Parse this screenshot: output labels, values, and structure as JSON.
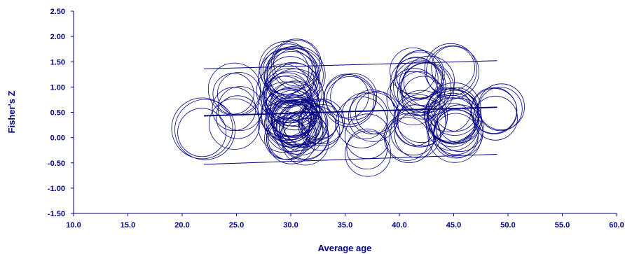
{
  "chart_data": {
    "type": "scatter",
    "title": "",
    "xlabel": "Average age",
    "ylabel": "Fisher's Z",
    "xlim": [
      10.0,
      60.0
    ],
    "ylim": [
      -1.5,
      2.5
    ],
    "x_ticks": [
      "10.0",
      "15.0",
      "20.0",
      "25.0",
      "30.0",
      "35.0",
      "40.0",
      "45.0",
      "50.0",
      "55.0",
      "60.0"
    ],
    "y_ticks": [
      "-1.50",
      "-1.00",
      "-0.50",
      "0.00",
      "0.50",
      "1.00",
      "1.50",
      "2.00",
      "2.50"
    ],
    "grid": false,
    "colors": {
      "series": "#000080",
      "axis": "#000080"
    },
    "marker": "circle-weighted",
    "regression_lines": {
      "center": {
        "x": [
          22.0,
          49.0
        ],
        "y": [
          0.43,
          0.6
        ]
      },
      "upper": {
        "x": [
          22.0,
          49.0
        ],
        "y": [
          1.36,
          1.52
        ]
      },
      "lower": {
        "x": [
          22.0,
          49.0
        ],
        "y": [
          -0.53,
          -0.33
        ]
      }
    },
    "clusters": [
      {
        "x": 22.0,
        "y": 0.15,
        "n": 3,
        "spread_x": 0.2,
        "spread_y": 0.05,
        "r": 40
      },
      {
        "x": 25.0,
        "y": 0.9,
        "n": 3,
        "spread_x": 0.4,
        "spread_y": 0.1,
        "r": 34
      },
      {
        "x": 25.0,
        "y": 0.4,
        "n": 4,
        "spread_x": 0.4,
        "spread_y": 0.2,
        "r": 34
      },
      {
        "x": 30.0,
        "y": 1.3,
        "n": 12,
        "spread_x": 0.6,
        "spread_y": 0.2,
        "r": 38
      },
      {
        "x": 30.0,
        "y": 0.6,
        "n": 22,
        "spread_x": 0.7,
        "spread_y": 0.4,
        "r": 38
      },
      {
        "x": 30.5,
        "y": 0.2,
        "n": 20,
        "spread_x": 1.0,
        "spread_y": 0.3,
        "r": 32
      },
      {
        "x": 32.5,
        "y": 0.2,
        "n": 6,
        "spread_x": 0.5,
        "spread_y": 0.2,
        "r": 30
      },
      {
        "x": 35.0,
        "y": 1.0,
        "n": 4,
        "spread_x": 1.0,
        "spread_y": 0.3,
        "r": 34
      },
      {
        "x": 37.5,
        "y": 0.3,
        "n": 6,
        "spread_x": 1.0,
        "spread_y": 0.3,
        "r": 34
      },
      {
        "x": 37.5,
        "y": -0.3,
        "n": 2,
        "spread_x": 0.6,
        "spread_y": 0.1,
        "r": 32
      },
      {
        "x": 42.0,
        "y": 1.05,
        "n": 14,
        "spread_x": 0.8,
        "spread_y": 0.3,
        "r": 36
      },
      {
        "x": 41.5,
        "y": 0.2,
        "n": 8,
        "spread_x": 1.0,
        "spread_y": 0.25,
        "r": 34
      },
      {
        "x": 45.0,
        "y": 1.3,
        "n": 3,
        "spread_x": 0.3,
        "spread_y": 0.1,
        "r": 36
      },
      {
        "x": 45.0,
        "y": 0.3,
        "n": 16,
        "spread_x": 0.6,
        "spread_y": 0.3,
        "r": 36
      },
      {
        "x": 49.0,
        "y": 0.5,
        "n": 5,
        "spread_x": 0.4,
        "spread_y": 0.15,
        "r": 34
      }
    ]
  }
}
